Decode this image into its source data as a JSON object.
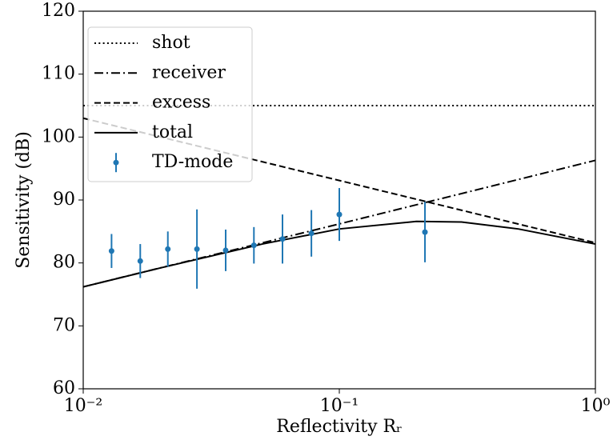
{
  "chart_data": {
    "type": "line",
    "xlabel": "Reflectivity Rᵣ",
    "ylabel": "Sensitivity (dB)",
    "xscale": "log",
    "xlim": [
      0.01,
      1
    ],
    "xticks": [
      {
        "value": 0.01,
        "label": "10⁻²"
      },
      {
        "value": 0.1,
        "label": "10⁻¹"
      },
      {
        "value": 1,
        "label": "10⁰"
      }
    ],
    "ylim": [
      60,
      120
    ],
    "yticks": [
      60,
      70,
      80,
      90,
      100,
      110,
      120
    ],
    "legend": "upper left",
    "series": [
      {
        "name": "shot",
        "type": "line",
        "style": "dotted",
        "color": "#000000",
        "x": [
          0.01,
          1
        ],
        "values": [
          105,
          105
        ]
      },
      {
        "name": "receiver",
        "type": "line",
        "style": "dashdot",
        "color": "#000000",
        "x": [
          0.01,
          0.1,
          1
        ],
        "values": [
          76.2,
          86.2,
          96.3
        ]
      },
      {
        "name": "excess",
        "type": "line",
        "style": "dashed",
        "color": "#000000",
        "x": [
          0.01,
          0.1,
          1
        ],
        "values": [
          103,
          93.1,
          83.2
        ]
      },
      {
        "name": "total",
        "type": "line",
        "style": "solid",
        "color": "#000000",
        "x": [
          0.01,
          0.02,
          0.05,
          0.1,
          0.2,
          0.3,
          0.5,
          1
        ],
        "values": [
          76.2,
          79.2,
          83.0,
          85.4,
          86.6,
          86.5,
          85.4,
          83.0
        ]
      },
      {
        "name": "TD-mode",
        "type": "errorbar",
        "style": "point",
        "color": "#1f77b4",
        "x": [
          0.0129,
          0.0167,
          0.0214,
          0.0278,
          0.036,
          0.0464,
          0.06,
          0.0778,
          0.1,
          0.216
        ],
        "values": [
          81.9,
          80.3,
          82.2,
          82.2,
          82.0,
          82.8,
          83.8,
          84.7,
          87.7,
          84.9
        ],
        "errors": [
          2.7,
          2.7,
          2.8,
          6.3,
          3.3,
          2.9,
          3.9,
          3.7,
          4.2,
          4.8
        ]
      }
    ]
  }
}
